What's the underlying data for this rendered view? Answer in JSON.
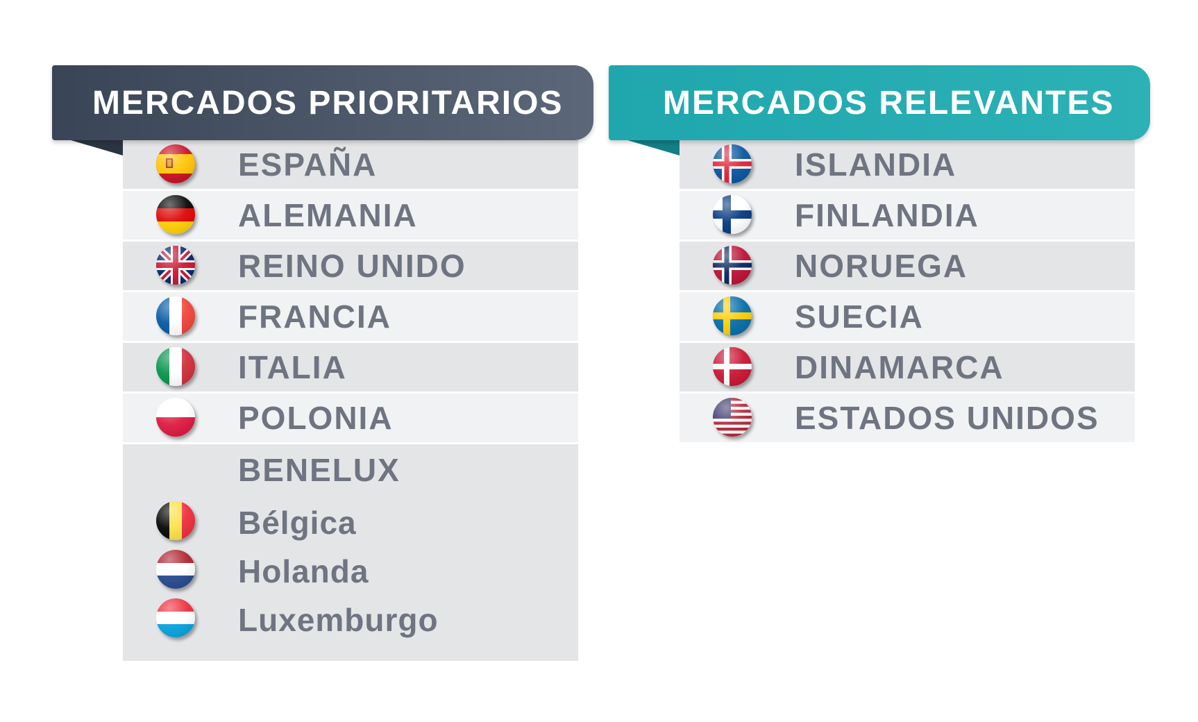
{
  "left_panel": {
    "title": "MERCADOS PRIORITARIOS",
    "markets": [
      {
        "label": "ESPAÑA",
        "flag": "spain-flag-icon"
      },
      {
        "label": "ALEMANIA",
        "flag": "germany-flag-icon"
      },
      {
        "label": "REINO UNIDO",
        "flag": "uk-flag-icon"
      },
      {
        "label": "FRANCIA",
        "flag": "france-flag-icon"
      },
      {
        "label": "ITALIA",
        "flag": "italy-flag-icon"
      },
      {
        "label": "POLONIA",
        "flag": "poland-flag-icon"
      }
    ],
    "benelux": {
      "title": "BENELUX",
      "countries": [
        {
          "label": "Bélgica",
          "flag": "belgium-flag-icon"
        },
        {
          "label": "Holanda",
          "flag": "netherlands-flag-icon"
        },
        {
          "label": "Luxemburgo",
          "flag": "luxembourg-flag-icon"
        }
      ]
    }
  },
  "right_panel": {
    "title": "MERCADOS RELEVANTES",
    "markets": [
      {
        "label": "ISLANDIA",
        "flag": "iceland-flag-icon"
      },
      {
        "label": "FINLANDIA",
        "flag": "finland-flag-icon"
      },
      {
        "label": "NORUEGA",
        "flag": "norway-flag-icon"
      },
      {
        "label": "SUECIA",
        "flag": "sweden-flag-icon"
      },
      {
        "label": "DINAMARCA",
        "flag": "denmark-flag-icon"
      },
      {
        "label": "ESTADOS UNIDOS",
        "flag": "usa-flag-icon"
      }
    ]
  },
  "colors": {
    "left_header": "#394556",
    "right_header": "#1fa7ad",
    "label_text": "#6f7481",
    "row_dark": "#e4e5e7",
    "row_light": "#f1f2f3"
  }
}
